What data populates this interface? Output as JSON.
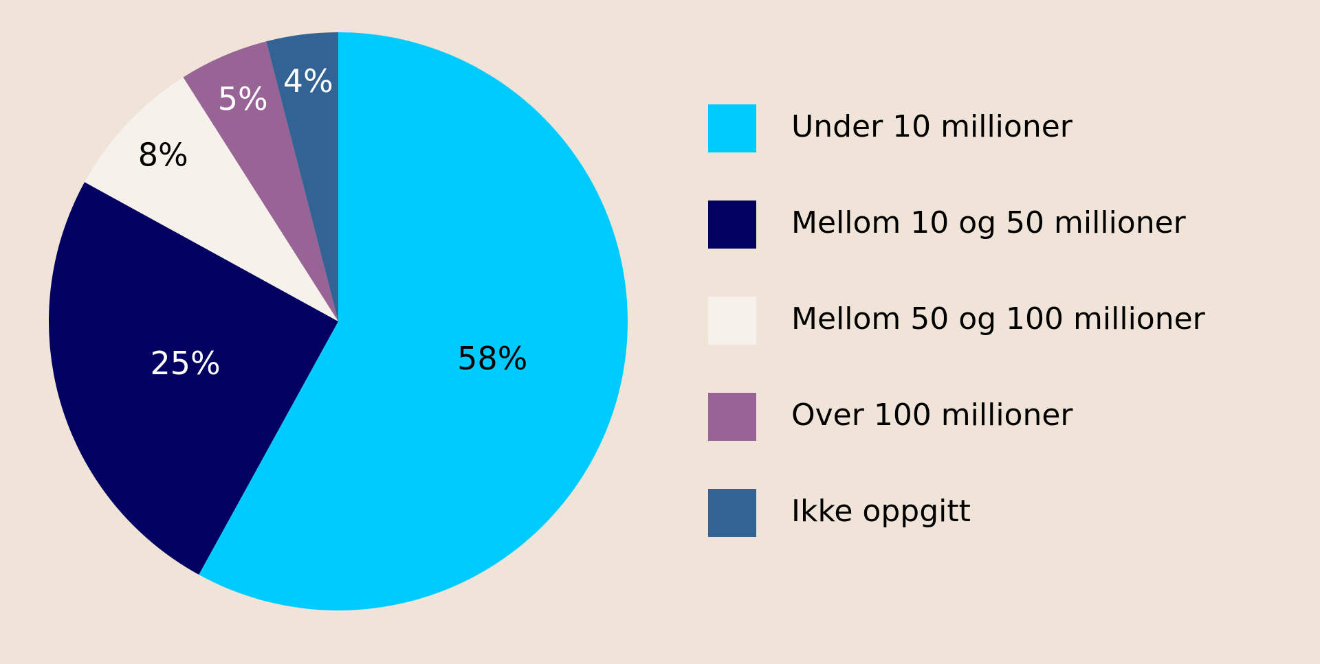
{
  "chart_data": {
    "type": "pie",
    "categories": [
      "Under 10 millioner",
      "Mellom 10 og 50 millioner",
      "Mellom 50 og 100 millioner",
      "Over 100 millioner",
      "Ikke oppgitt"
    ],
    "values": [
      58,
      25,
      8,
      5,
      4
    ],
    "value_labels": [
      "58%",
      "25%",
      "8%",
      "5%",
      "4%"
    ],
    "colors": [
      "#00cbff",
      "#020060",
      "#f6f1ea",
      "#986496",
      "#336394"
    ],
    "label_colors": [
      "#000000",
      "#ffffff",
      "#000000",
      "#ffffff",
      "#ffffff"
    ],
    "legend": "right"
  }
}
